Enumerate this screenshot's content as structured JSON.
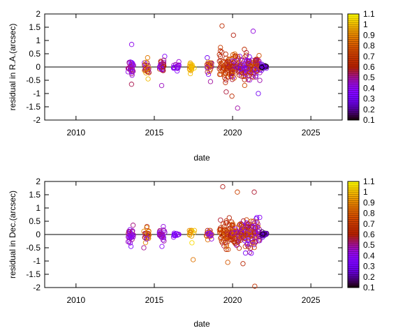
{
  "chart_data": [
    {
      "type": "scatter",
      "title": "",
      "xlabel": "date",
      "ylabel": "residual in R.A.(arcsec)",
      "xlim": [
        2008,
        2027
      ],
      "ylim": [
        -2,
        2
      ],
      "xticks": [
        2010,
        2015,
        2020,
        2025
      ],
      "yticks": [
        -2,
        -1.5,
        -1,
        -0.5,
        0,
        0.5,
        1,
        1.5,
        2
      ],
      "zero_line": true,
      "colorbar": {
        "min": 0.1,
        "max": 1.1,
        "ticks": [
          0.1,
          0.2,
          0.3,
          0.4,
          0.5,
          0.6,
          0.7,
          0.8,
          0.9,
          1,
          1.1
        ],
        "colormap": "gnuplot"
      },
      "grid": false,
      "clusters": [
        {
          "x": 2013.5,
          "n": 30,
          "spread": 0.25,
          "min": -0.65,
          "max": 0.85,
          "c": [
            0.35,
            0.55
          ]
        },
        {
          "x": 2014.5,
          "n": 26,
          "spread": 0.18,
          "min": -0.45,
          "max": 0.35,
          "c": [
            0.3,
            1.0
          ]
        },
        {
          "x": 2015.5,
          "n": 28,
          "spread": 0.2,
          "min": -0.7,
          "max": 0.4,
          "c": [
            0.35,
            0.65
          ]
        },
        {
          "x": 2016.4,
          "n": 16,
          "spread": 0.1,
          "min": -0.15,
          "max": 0.2,
          "c": [
            0.35,
            0.5
          ]
        },
        {
          "x": 2017.4,
          "n": 18,
          "spread": 0.12,
          "min": -0.25,
          "max": 0.15,
          "c": [
            0.85,
            1.05
          ]
        },
        {
          "x": 2018.5,
          "n": 28,
          "spread": 0.2,
          "min": -0.55,
          "max": 0.35,
          "c": [
            0.3,
            0.95
          ]
        },
        {
          "x": 2019.6,
          "n": 80,
          "spread": 0.45,
          "min": -1.1,
          "max": 1.55,
          "c": [
            0.55,
            0.85
          ]
        },
        {
          "x": 2020.4,
          "n": 80,
          "spread": 0.4,
          "min": -1.55,
          "max": 1.2,
          "c": [
            0.3,
            0.85
          ]
        },
        {
          "x": 2021.3,
          "n": 90,
          "spread": 0.4,
          "min": -1.0,
          "max": 1.35,
          "c": [
            0.3,
            0.85
          ]
        },
        {
          "x": 2022.0,
          "n": 30,
          "spread": 0.05,
          "min": -0.12,
          "max": 0.1,
          "c": [
            0.1,
            0.35
          ]
        }
      ]
    },
    {
      "type": "scatter",
      "title": "",
      "xlabel": "date",
      "ylabel": "residual in Dec.(arcsec)",
      "xlim": [
        2008,
        2027
      ],
      "ylim": [
        -2,
        2
      ],
      "xticks": [
        2010,
        2015,
        2020,
        2025
      ],
      "yticks": [
        -2,
        -1.5,
        -1,
        -0.5,
        0,
        0.5,
        1,
        1.5,
        2
      ],
      "zero_line": true,
      "colorbar": {
        "min": 0.1,
        "max": 1.1,
        "ticks": [
          0.1,
          0.2,
          0.3,
          0.4,
          0.5,
          0.6,
          0.7,
          0.8,
          0.9,
          1,
          1.1
        ],
        "colormap": "gnuplot"
      },
      "grid": false,
      "clusters": [
        {
          "x": 2013.5,
          "n": 30,
          "spread": 0.2,
          "min": -0.45,
          "max": 0.35,
          "c": [
            0.35,
            0.55
          ]
        },
        {
          "x": 2014.5,
          "n": 26,
          "spread": 0.18,
          "min": -0.5,
          "max": 0.3,
          "c": [
            0.3,
            1.0
          ]
        },
        {
          "x": 2015.5,
          "n": 28,
          "spread": 0.18,
          "min": -0.45,
          "max": 0.3,
          "c": [
            0.35,
            0.55
          ]
        },
        {
          "x": 2016.4,
          "n": 12,
          "spread": 0.05,
          "min": -0.1,
          "max": 0.05,
          "c": [
            0.3,
            0.45
          ]
        },
        {
          "x": 2017.4,
          "n": 14,
          "spread": 0.4,
          "min": -0.95,
          "max": 0.15,
          "c": [
            0.85,
            1.05
          ]
        },
        {
          "x": 2018.5,
          "n": 22,
          "spread": 0.12,
          "min": -0.2,
          "max": 0.15,
          "c": [
            0.3,
            0.9
          ]
        },
        {
          "x": 2019.6,
          "n": 80,
          "spread": 0.45,
          "min": -1.05,
          "max": 1.8,
          "c": [
            0.55,
            0.85
          ]
        },
        {
          "x": 2020.4,
          "n": 80,
          "spread": 0.4,
          "min": -1.1,
          "max": 1.6,
          "c": [
            0.3,
            0.85
          ]
        },
        {
          "x": 2021.3,
          "n": 90,
          "spread": 0.45,
          "min": -1.95,
          "max": 1.6,
          "c": [
            0.3,
            0.85
          ]
        },
        {
          "x": 2022.0,
          "n": 30,
          "spread": 0.04,
          "min": -0.1,
          "max": 0.1,
          "c": [
            0.1,
            0.35
          ]
        }
      ]
    }
  ]
}
